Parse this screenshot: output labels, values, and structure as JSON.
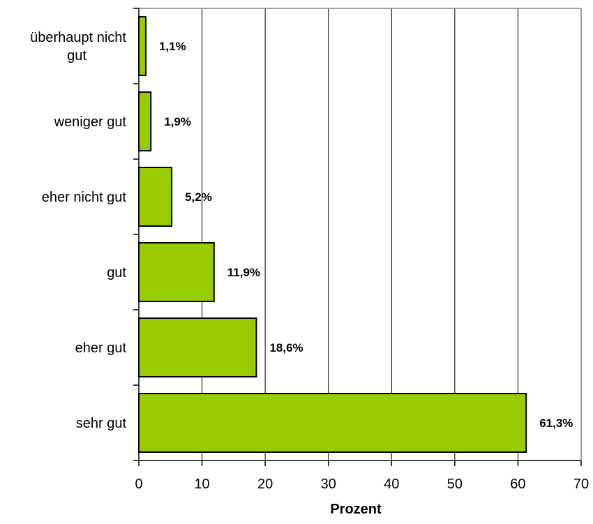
{
  "chart_data": {
    "type": "bar",
    "orientation": "horizontal",
    "categories": [
      "sehr gut",
      "eher gut",
      "gut",
      "eher nicht gut",
      "weniger gut",
      "überhaupt nicht gut"
    ],
    "category_lines": [
      [
        "sehr gut"
      ],
      [
        "eher gut"
      ],
      [
        "gut"
      ],
      [
        "eher nicht gut"
      ],
      [
        "weniger gut"
      ],
      [
        "überhaupt nicht",
        "gut"
      ]
    ],
    "values": [
      61.3,
      18.6,
      11.9,
      5.2,
      1.9,
      1.1
    ],
    "data_labels": [
      "61,3%",
      "18,6%",
      "11,9%",
      "5,2%",
      "1,9%",
      "1,1%"
    ],
    "xlabel": "Prozent",
    "xlim": [
      0,
      70
    ],
    "xticks": [
      0,
      10,
      20,
      30,
      40,
      50,
      60,
      70
    ],
    "xtick_labels": [
      "0",
      "10",
      "20",
      "30",
      "40",
      "50",
      "60",
      "70"
    ],
    "grid": "vertical",
    "legend": "none",
    "colors": {
      "bar": "#99cc00",
      "bar_edge": "#000000",
      "grid": "#000000",
      "frame": "#808080"
    }
  }
}
